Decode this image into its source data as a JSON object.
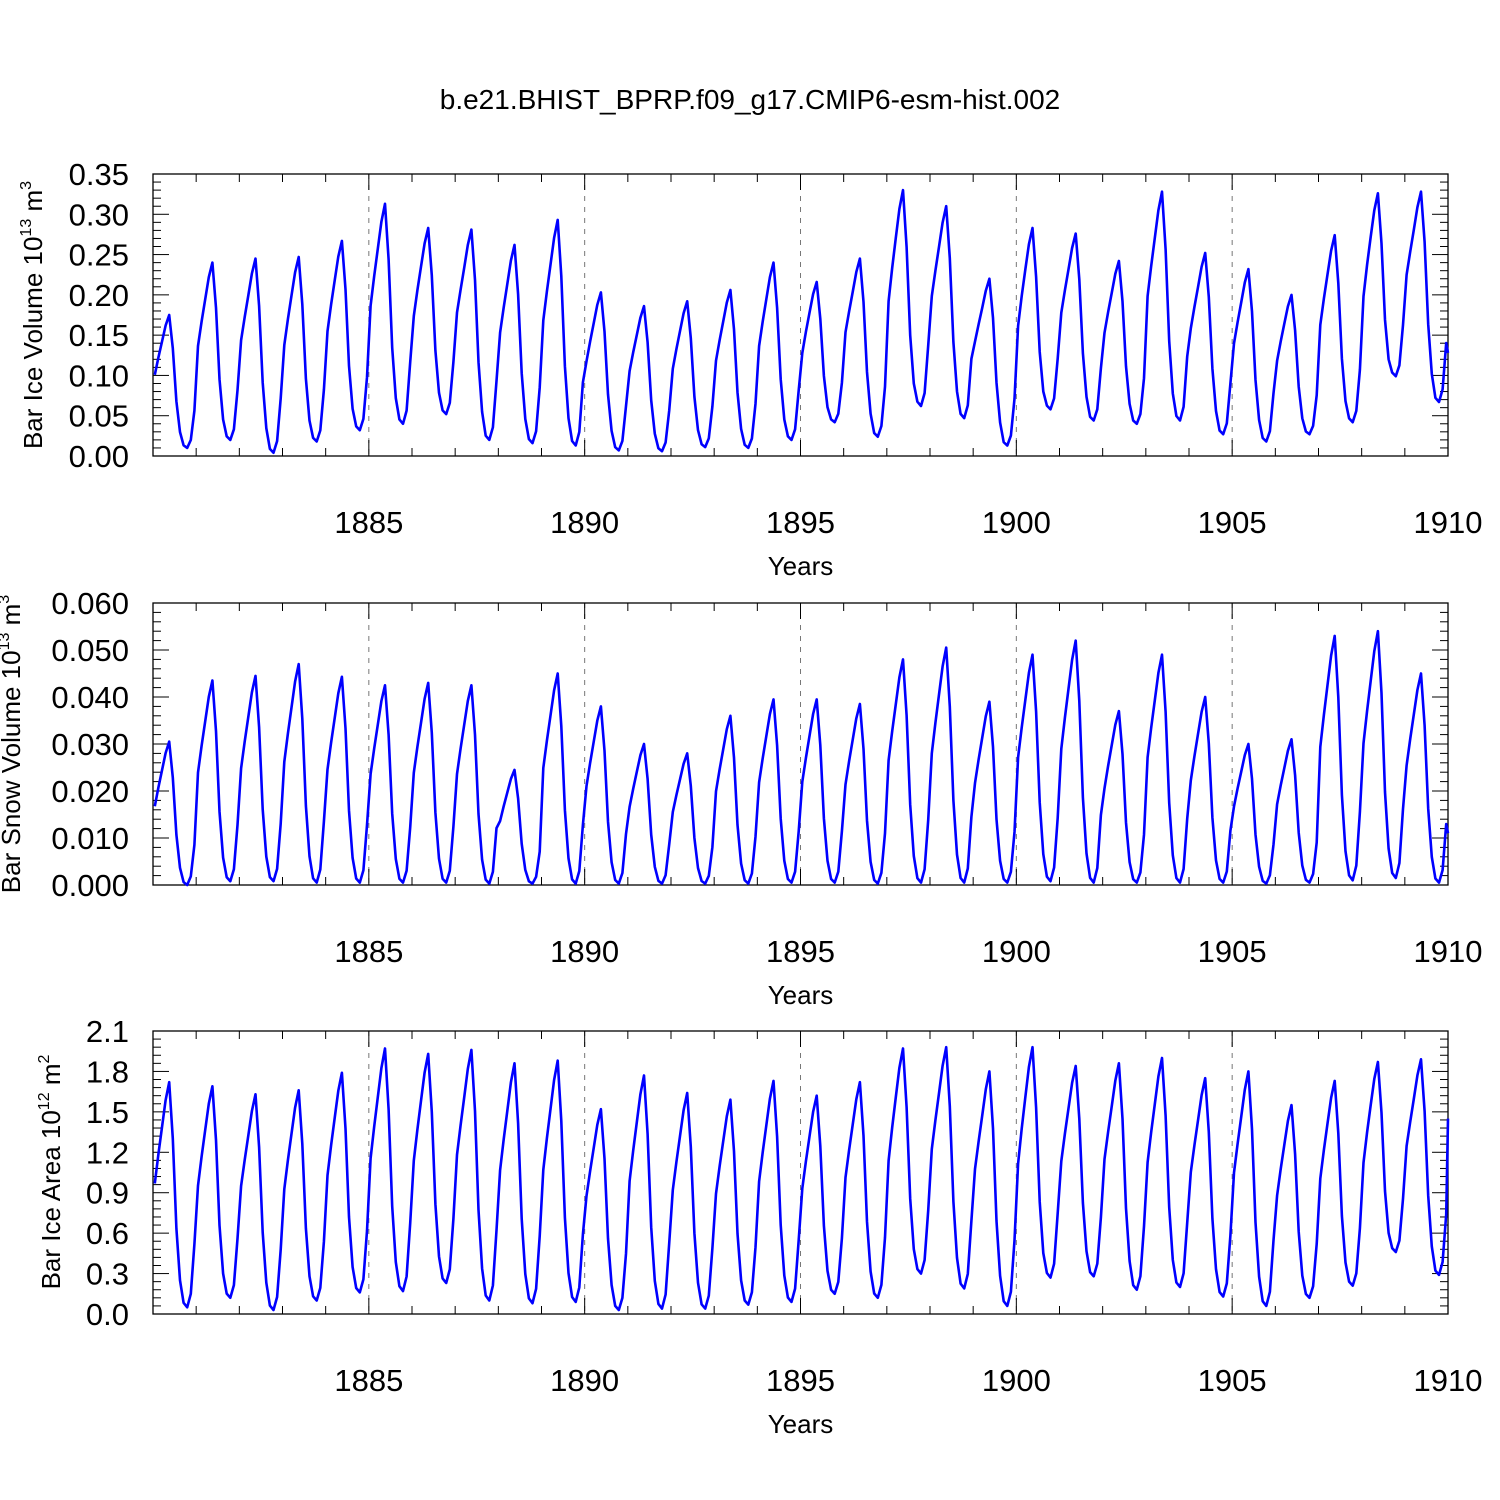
{
  "title": "b.e21.BHIST_BPRP.f09_g17.CMIP6-esm-hist.002",
  "chart_data": [
    {
      "type": "line",
      "title": "b.e21.BHIST_BPRP.f09_g17.CMIP6-esm-hist.002",
      "xlabel": "Years",
      "ylabel": "Bar Ice Volume 10",
      "ylabel_exp": "13",
      "ylabel_unit": "m",
      "ylabel_unit_exp": "3",
      "xlim": [
        1880,
        1910
      ],
      "ylim": [
        0,
        0.35
      ],
      "x_ticks": [
        "1885",
        "1890",
        "1895",
        "1900",
        "1905",
        "1910"
      ],
      "y_ticks": [
        "0.00",
        "0.05",
        "0.10",
        "0.15",
        "0.20",
        "0.25",
        "0.30",
        "0.35"
      ],
      "grid": "dashed vertical lines at 5-year ticks",
      "color": "#0000ff",
      "series": [
        {
          "seasonal_maxima": [
            0.175,
            0.24,
            0.245,
            0.247,
            0.267,
            0.313,
            0.283,
            0.281,
            0.262,
            0.293,
            0.203,
            0.186,
            0.192,
            0.206,
            0.24,
            0.216,
            0.245,
            0.33,
            0.31,
            0.22,
            0.283,
            0.276,
            0.242,
            0.328,
            0.252,
            0.232,
            0.2,
            0.274,
            0.326,
            0.328
          ],
          "seasonal_minima": [
            0.01,
            0.02,
            0.004,
            0.018,
            0.032,
            0.04,
            0.052,
            0.02,
            0.016,
            0.013,
            0.007,
            0.006,
            0.011,
            0.01,
            0.02,
            0.042,
            0.024,
            0.062,
            0.047,
            0.013,
            0.058,
            0.044,
            0.04,
            0.044,
            0.027,
            0.018,
            0.027,
            0.042,
            0.099,
            0.067
          ],
          "end_value": 0.128
        }
      ]
    },
    {
      "type": "line",
      "xlabel": "Years",
      "ylabel": "Bar Snow Volume 10",
      "ylabel_exp": "13",
      "ylabel_unit": "m",
      "ylabel_unit_exp": "3",
      "xlim": [
        1880,
        1910
      ],
      "ylim": [
        0,
        0.06
      ],
      "x_ticks": [
        "1885",
        "1890",
        "1895",
        "1900",
        "1905",
        "1910"
      ],
      "y_ticks": [
        "0.000",
        "0.010",
        "0.020",
        "0.030",
        "0.040",
        "0.050",
        "0.060"
      ],
      "grid": "dashed vertical lines at 5-year ticks",
      "color": "#0000ff",
      "series": [
        {
          "seasonal_maxima": [
            0.0305,
            0.0435,
            0.0445,
            0.047,
            0.0443,
            0.0425,
            0.043,
            0.0425,
            0.0245,
            0.045,
            0.038,
            0.03,
            0.028,
            0.036,
            0.0395,
            0.0395,
            0.0385,
            0.048,
            0.0505,
            0.039,
            0.049,
            0.052,
            0.037,
            0.049,
            0.04,
            0.03,
            0.031,
            0.053,
            0.054,
            0.045
          ],
          "seasonal_minima": [
            0.0,
            0.0008,
            0.0008,
            0.0005,
            0.0005,
            0.0005,
            0.0005,
            0.0003,
            0.0003,
            0.0003,
            0.0003,
            0.0003,
            0.0003,
            0.0003,
            0.0005,
            0.0005,
            0.0003,
            0.0005,
            0.0005,
            0.0005,
            0.0008,
            0.0005,
            0.0005,
            0.0005,
            0.0005,
            0.0003,
            0.0005,
            0.001,
            0.0015,
            0.0005
          ],
          "end_value": 0.011
        }
      ]
    },
    {
      "type": "line",
      "xlabel": "Years",
      "ylabel": "Bar Ice Area 10",
      "ylabel_exp": "12",
      "ylabel_unit": "m",
      "ylabel_unit_exp": "2",
      "xlim": [
        1880,
        1910
      ],
      "ylim": [
        0,
        2.1
      ],
      "x_ticks": [
        "1885",
        "1890",
        "1895",
        "1900",
        "1905",
        "1910"
      ],
      "y_ticks": [
        "0.0",
        "0.3",
        "0.6",
        "0.9",
        "1.2",
        "1.5",
        "1.8",
        "2.1"
      ],
      "grid": "dashed vertical lines at 5-year ticks",
      "color": "#0000ff",
      "series": [
        {
          "seasonal_maxima": [
            1.72,
            1.69,
            1.63,
            1.66,
            1.79,
            1.97,
            1.93,
            1.96,
            1.86,
            1.88,
            1.52,
            1.77,
            1.64,
            1.59,
            1.73,
            1.62,
            1.72,
            1.97,
            1.98,
            1.8,
            1.98,
            1.84,
            1.86,
            1.9,
            1.75,
            1.8,
            1.55,
            1.73,
            1.87,
            1.89
          ],
          "seasonal_minima": [
            0.05,
            0.12,
            0.03,
            0.1,
            0.16,
            0.17,
            0.23,
            0.1,
            0.08,
            0.09,
            0.03,
            0.04,
            0.04,
            0.07,
            0.09,
            0.15,
            0.12,
            0.3,
            0.19,
            0.06,
            0.27,
            0.28,
            0.18,
            0.2,
            0.13,
            0.06,
            0.12,
            0.21,
            0.46,
            0.29
          ],
          "end_value": 1.45
        }
      ]
    }
  ]
}
